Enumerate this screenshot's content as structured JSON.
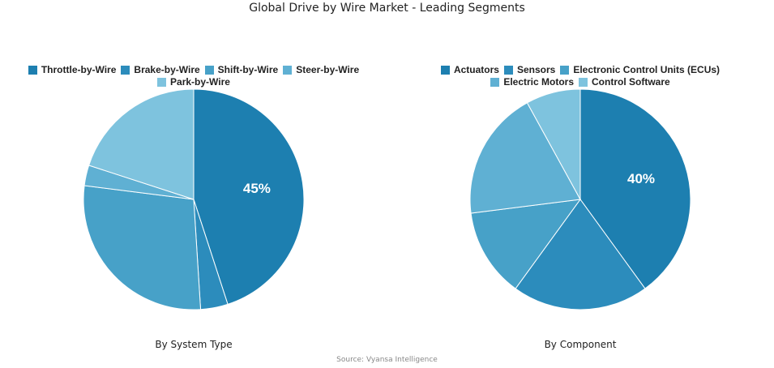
{
  "title": "Global Drive by Wire Market - Leading Segments",
  "source": "Source: Vyansa Intelligence",
  "chart_data": [
    {
      "type": "pie",
      "subtitle": "By System Type",
      "categories": [
        "Throttle-by-Wire",
        "Brake-by-Wire",
        "Shift-by-Wire",
        "Steer-by-Wire",
        "Park-by-Wire"
      ],
      "values": [
        45,
        4,
        28,
        3,
        20
      ],
      "labels": [
        "45%",
        "",
        "",
        "",
        ""
      ],
      "colors": [
        "#1d7fb0",
        "#2c8cbc",
        "#47a1c8",
        "#5fb0d3",
        "#7ec3de"
      ],
      "legend": "top"
    },
    {
      "type": "pie",
      "subtitle": "By Component",
      "categories": [
        "Actuators",
        "Sensors",
        "Electronic Control Units (ECUs)",
        "Electric Motors",
        "Control Software"
      ],
      "values": [
        40,
        20,
        13,
        19,
        8
      ],
      "labels": [
        "40%",
        "",
        "",
        "",
        ""
      ],
      "colors": [
        "#1d7fb0",
        "#2c8cbc",
        "#47a1c8",
        "#5fb0d3",
        "#7ec3de"
      ],
      "legend": "top"
    }
  ]
}
